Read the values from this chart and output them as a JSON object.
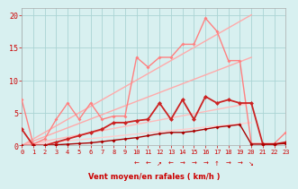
{
  "title": "",
  "xlabel": "Vent moyen/en rafales ( km/h )",
  "bg_color": "#d8f0f0",
  "grid_color": "#aad4d4",
  "xlim": [
    0,
    23
  ],
  "ylim": [
    0,
    21
  ],
  "yticks": [
    0,
    5,
    10,
    15,
    20
  ],
  "xticks": [
    0,
    1,
    2,
    3,
    4,
    5,
    6,
    7,
    8,
    9,
    10,
    11,
    12,
    13,
    14,
    15,
    16,
    17,
    18,
    19,
    20,
    21,
    22,
    23
  ],
  "lines": [
    {
      "comment": "straight diagonal line - upper bound rafales (light pink)",
      "x": [
        0,
        20
      ],
      "y": [
        0,
        20
      ],
      "color": "#ffaaaa",
      "lw": 1.0,
      "marker": null,
      "ms": 0,
      "zorder": 2
    },
    {
      "comment": "straight diagonal line - middle bound (light pink)",
      "x": [
        0,
        20
      ],
      "y": [
        0,
        13.5
      ],
      "color": "#ffaaaa",
      "lw": 1.0,
      "marker": null,
      "ms": 0,
      "zorder": 2
    },
    {
      "comment": "straight diagonal - lower bound (light pink/salmon)",
      "x": [
        0,
        20
      ],
      "y": [
        0,
        6.5
      ],
      "color": "#ffbbbb",
      "lw": 1.0,
      "marker": null,
      "ms": 0,
      "zorder": 2
    },
    {
      "comment": "straight diagonal - lowest bound (very light pink)",
      "x": [
        0,
        20
      ],
      "y": [
        0,
        3.5
      ],
      "color": "#ffcccc",
      "lw": 1.0,
      "marker": null,
      "ms": 0,
      "zorder": 2
    },
    {
      "comment": "jagged line with markers - rafales data (medium pink with diamonds)",
      "x": [
        0,
        1,
        2,
        3,
        4,
        5,
        6,
        7,
        8,
        9,
        10,
        11,
        12,
        13,
        14,
        15,
        16,
        17,
        18,
        19,
        20,
        21,
        22,
        23
      ],
      "y": [
        7.0,
        0.2,
        1.0,
        4.0,
        6.5,
        4.0,
        6.5,
        4.0,
        4.5,
        4.5,
        13.5,
        12.0,
        13.5,
        13.5,
        15.5,
        15.5,
        19.5,
        17.5,
        13.0,
        13.0,
        0.3,
        0.3,
        0.3,
        2.0
      ],
      "color": "#ff8080",
      "lw": 1.0,
      "marker": "D",
      "ms": 2.0,
      "zorder": 4
    },
    {
      "comment": "jagged line with markers - vent moyen data (darker red with diamonds)",
      "x": [
        0,
        1,
        2,
        3,
        4,
        5,
        6,
        7,
        8,
        9,
        10,
        11,
        12,
        13,
        14,
        15,
        16,
        17,
        18,
        19,
        20,
        21,
        22,
        23
      ],
      "y": [
        2.5,
        0.0,
        0.0,
        0.5,
        1.0,
        1.5,
        2.0,
        2.5,
        3.5,
        3.5,
        3.8,
        4.0,
        6.5,
        4.0,
        7.0,
        4.0,
        7.5,
        6.5,
        7.0,
        6.5,
        6.5,
        0.2,
        0.2,
        0.5
      ],
      "color": "#cc2222",
      "lw": 1.3,
      "marker": "D",
      "ms": 2.5,
      "zorder": 5
    },
    {
      "comment": "bottom flat line - near zero with small markers (dark red)",
      "x": [
        0,
        1,
        2,
        3,
        4,
        5,
        6,
        7,
        8,
        9,
        10,
        11,
        12,
        13,
        14,
        15,
        16,
        17,
        18,
        19,
        20,
        21,
        22,
        23
      ],
      "y": [
        0.0,
        0.0,
        0.0,
        0.1,
        0.2,
        0.3,
        0.4,
        0.6,
        0.8,
        1.0,
        1.2,
        1.5,
        1.8,
        2.0,
        2.0,
        2.2,
        2.5,
        2.8,
        3.0,
        3.2,
        0.2,
        0.2,
        0.2,
        0.3
      ],
      "color": "#aa0000",
      "lw": 1.0,
      "marker": "D",
      "ms": 2.0,
      "zorder": 6
    }
  ],
  "wind_arrows_x": [
    10,
    11,
    12,
    13,
    14,
    15,
    16,
    17,
    18,
    19,
    20
  ],
  "wind_arrows": [
    "←",
    "←",
    "↗",
    "←",
    "→",
    "→",
    "→",
    "↑",
    "→",
    "→",
    "↘"
  ]
}
